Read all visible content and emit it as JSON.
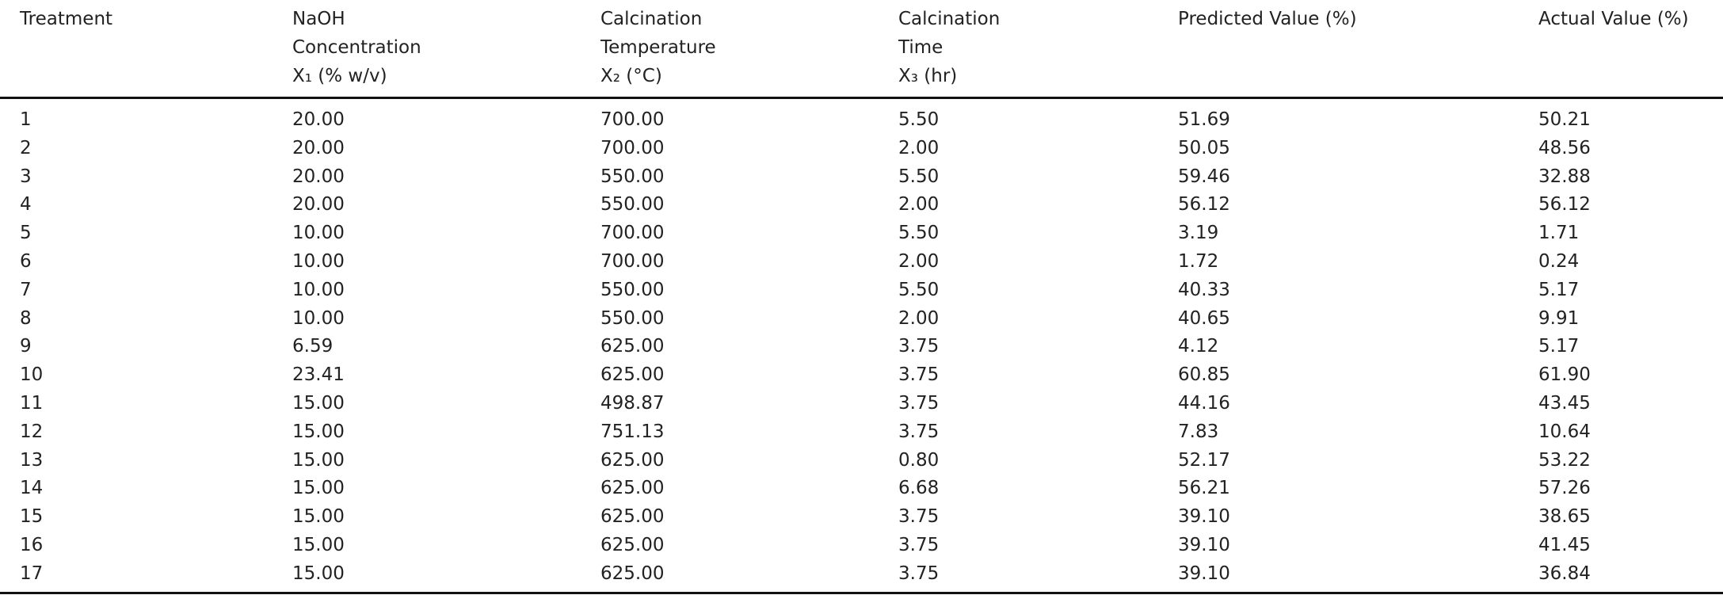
{
  "table": {
    "columns": [
      [
        "Treatment"
      ],
      [
        "NaOH",
        "Concentration",
        "X₁ (% w/v)"
      ],
      [
        "Calcination",
        "Temperature",
        "X₂ (°C)"
      ],
      [
        "Calcination",
        "Time",
        "X₃ (hr)"
      ],
      [
        "Predicted Value (%)"
      ],
      [
        "Actual Value (%)"
      ]
    ],
    "rows": [
      [
        "1",
        "20.00",
        "700.00",
        "5.50",
        "51.69",
        "50.21"
      ],
      [
        "2",
        "20.00",
        "700.00",
        "2.00",
        "50.05",
        "48.56"
      ],
      [
        "3",
        "20.00",
        "550.00",
        "5.50",
        "59.46",
        "32.88"
      ],
      [
        "4",
        "20.00",
        "550.00",
        "2.00",
        "56.12",
        "56.12"
      ],
      [
        "5",
        "10.00",
        "700.00",
        "5.50",
        "3.19",
        "1.71"
      ],
      [
        "6",
        "10.00",
        "700.00",
        "2.00",
        "1.72",
        "0.24"
      ],
      [
        "7",
        "10.00",
        "550.00",
        "5.50",
        "40.33",
        "5.17"
      ],
      [
        "8",
        "10.00",
        "550.00",
        "2.00",
        "40.65",
        "9.91"
      ],
      [
        "9",
        "6.59",
        "625.00",
        "3.75",
        "4.12",
        "5.17"
      ],
      [
        "10",
        "23.41",
        "625.00",
        "3.75",
        "60.85",
        "61.90"
      ],
      [
        "11",
        "15.00",
        "498.87",
        "3.75",
        "44.16",
        "43.45"
      ],
      [
        "12",
        "15.00",
        "751.13",
        "3.75",
        "7.83",
        "10.64"
      ],
      [
        "13",
        "15.00",
        "625.00",
        "0.80",
        "52.17",
        "53.22"
      ],
      [
        "14",
        "15.00",
        "625.00",
        "6.68",
        "56.21",
        "57.26"
      ],
      [
        "15",
        "15.00",
        "625.00",
        "3.75",
        "39.10",
        "38.65"
      ],
      [
        "16",
        "15.00",
        "625.00",
        "3.75",
        "39.10",
        "41.45"
      ],
      [
        "17",
        "15.00",
        "625.00",
        "3.75",
        "39.10",
        "36.84"
      ]
    ]
  }
}
